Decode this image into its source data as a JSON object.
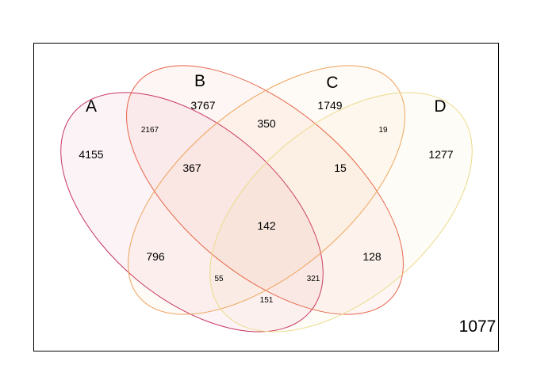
{
  "sets": [
    {
      "id": "A",
      "label": "A",
      "color": "#C7345F"
    },
    {
      "id": "B",
      "label": "B",
      "color": "#E8624A"
    },
    {
      "id": "C",
      "label": "C",
      "color": "#EEA25A"
    },
    {
      "id": "D",
      "label": "D",
      "color": "#EBDB8C"
    }
  ],
  "regions": {
    "A": "4155",
    "B": "3767",
    "C": "1749",
    "D": "1277",
    "AB": "2167",
    "BC": "350",
    "CD": "19",
    "ABC": "367",
    "BCD": "15",
    "ABCD": "142",
    "AC": "796",
    "BD": "128",
    "ACD": "55",
    "ABD": "321",
    "AD": "151",
    "outside": "1077"
  }
}
